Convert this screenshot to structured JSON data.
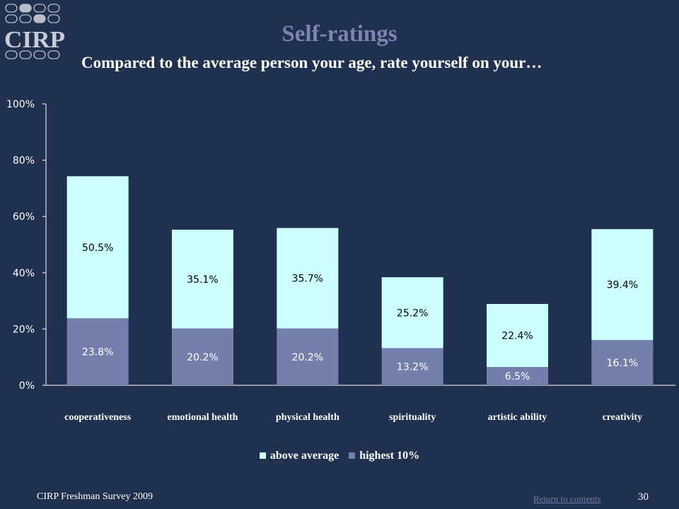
{
  "header": {
    "logo_text": "CIRP",
    "title": "Self-ratings",
    "subtitle": "Compared to the average person your age, rate yourself on your…"
  },
  "colors": {
    "background": "#1f314f",
    "above_average": "#ccffff",
    "highest_10": "#7480ab",
    "title": "#7c84b3",
    "axis": "#ffffff"
  },
  "chart_data": {
    "type": "bar",
    "stacked": true,
    "categories": [
      "cooperativeness",
      "emotional health",
      "physical health",
      "spirituality",
      "artistic ability",
      "creativity"
    ],
    "series": [
      {
        "name": "highest 10%",
        "values": [
          23.8,
          20.2,
          20.2,
          13.2,
          6.5,
          16.1
        ],
        "labels": [
          "23.8%",
          "20.2%",
          "20.2%",
          "13.2%",
          "6.5%",
          "16.1%"
        ]
      },
      {
        "name": "above average",
        "values": [
          50.5,
          35.1,
          35.7,
          25.2,
          22.4,
          39.4
        ],
        "labels": [
          "50.5%",
          "35.1%",
          "35.7%",
          "25.2%",
          "22.4%",
          "39.4%"
        ]
      }
    ],
    "ylim": [
      0,
      100
    ],
    "yticks": [
      "0%",
      "20%",
      "40%",
      "60%",
      "80%",
      "100%"
    ],
    "legend_position": "bottom",
    "grid": false
  },
  "legend": {
    "above_average": "above average",
    "highest_10": "highest 10%"
  },
  "footer": {
    "source": "CIRP Freshman Survey 2009",
    "link": "Return to contents",
    "page": "30"
  }
}
